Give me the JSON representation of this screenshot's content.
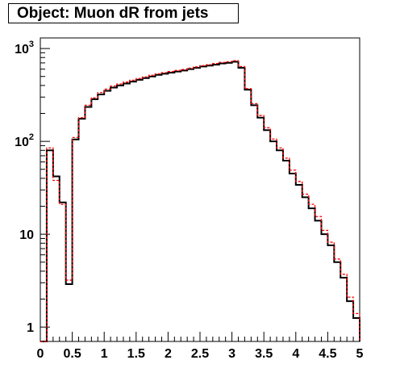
{
  "chart_data": {
    "type": "histogram",
    "title": "Object: Muon dR from jets",
    "xlabel": "",
    "ylabel": "",
    "xlim": [
      0,
      5
    ],
    "ylim": [
      0.7,
      1300
    ],
    "yscale": "log",
    "grid": false,
    "legend": "none",
    "x_tick_labels": [
      "0",
      "0.5",
      "1",
      "1.5",
      "2",
      "2.5",
      "3",
      "3.5",
      "4",
      "4.5",
      "5"
    ],
    "y_tick_labels": [
      {
        "base": "1",
        "exp": ""
      },
      {
        "base": "10",
        "exp": ""
      },
      {
        "base": "10",
        "exp": "2"
      },
      {
        "base": "10",
        "exp": "3"
      }
    ],
    "bin_edges": [
      0,
      0.1,
      0.2,
      0.3,
      0.4,
      0.5,
      0.6,
      0.7,
      0.8,
      0.9,
      1.0,
      1.1,
      1.2,
      1.3,
      1.4,
      1.5,
      1.6,
      1.7,
      1.8,
      1.9,
      2.0,
      2.1,
      2.2,
      2.3,
      2.4,
      2.5,
      2.6,
      2.7,
      2.8,
      2.9,
      3.0,
      3.1,
      3.2,
      3.3,
      3.4,
      3.5,
      3.6,
      3.7,
      3.8,
      3.9,
      4.0,
      4.1,
      4.2,
      4.3,
      4.4,
      4.5,
      4.6,
      4.7,
      4.8,
      4.9,
      5.0
    ],
    "series": [
      {
        "color": "#000000",
        "style": "solid",
        "values": [
          0.7,
          80,
          42,
          22,
          2.9,
          105,
          175,
          235,
          285,
          320,
          350,
          380,
          400,
          420,
          440,
          460,
          480,
          500,
          520,
          535,
          550,
          565,
          580,
          600,
          620,
          640,
          655,
          670,
          690,
          700,
          720,
          620,
          360,
          245,
          180,
          132,
          100,
          80,
          62,
          45,
          34,
          25,
          19,
          14,
          10,
          7.6,
          5.0,
          3.4,
          1.9,
          1.25
        ]
      },
      {
        "color": "#ff0000",
        "style": "dashed",
        "values": [
          0.7,
          85,
          38,
          21,
          3.2,
          110,
          180,
          245,
          295,
          335,
          365,
          395,
          415,
          435,
          455,
          475,
          495,
          515,
          535,
          550,
          565,
          580,
          595,
          615,
          635,
          655,
          670,
          690,
          710,
          720,
          740,
          640,
          370,
          255,
          190,
          140,
          106,
          85,
          66,
          49,
          37,
          27,
          21,
          15.5,
          11,
          8.2,
          5.4,
          3.7,
          2.1,
          1.4
        ]
      }
    ]
  }
}
